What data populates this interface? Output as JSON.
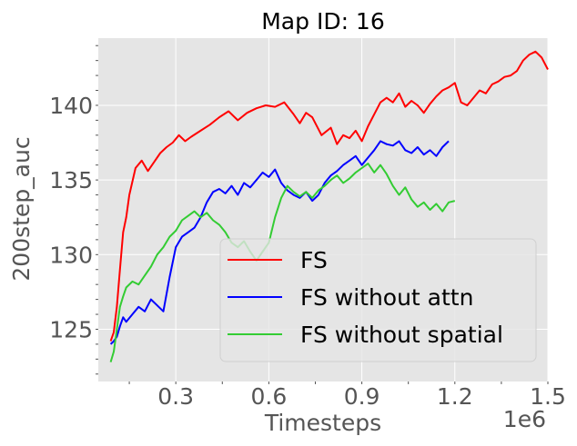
{
  "chart_data": {
    "type": "line",
    "title": "Map ID: 16",
    "xlabel": "Timesteps",
    "ylabel": "200step_auc",
    "x_offset_label": "1e6",
    "xlim": [
      0.05,
      1.5
    ],
    "ylim": [
      121.5,
      144.5
    ],
    "x_ticks": [
      0.3,
      0.6,
      0.9,
      1.2,
      1.5
    ],
    "x_tick_labels": [
      "0.3",
      "0.6",
      "0.9",
      "1.2",
      "1.5"
    ],
    "y_ticks": [
      125,
      130,
      135,
      140
    ],
    "y_tick_labels": [
      "125",
      "130",
      "135",
      "140"
    ],
    "grid": true,
    "background": "#e5e5e5",
    "legend_position": "lower-right",
    "series": [
      {
        "name": "FS",
        "color": "#ff0000",
        "x": [
          0.09,
          0.1,
          0.11,
          0.12,
          0.13,
          0.14,
          0.15,
          0.17,
          0.19,
          0.21,
          0.23,
          0.25,
          0.27,
          0.29,
          0.31,
          0.33,
          0.35,
          0.38,
          0.41,
          0.44,
          0.47,
          0.5,
          0.53,
          0.56,
          0.59,
          0.62,
          0.65,
          0.68,
          0.7,
          0.72,
          0.74,
          0.77,
          0.8,
          0.82,
          0.84,
          0.86,
          0.88,
          0.9,
          0.92,
          0.94,
          0.96,
          0.98,
          1.0,
          1.02,
          1.04,
          1.06,
          1.08,
          1.1,
          1.12,
          1.14,
          1.16,
          1.18,
          1.2,
          1.22,
          1.24,
          1.26,
          1.28,
          1.3,
          1.32,
          1.34,
          1.36,
          1.38,
          1.4,
          1.42,
          1.44,
          1.46,
          1.48,
          1.5
        ],
        "y": [
          124.2,
          124.8,
          126.5,
          129.0,
          131.5,
          132.5,
          134.0,
          135.8,
          136.3,
          135.6,
          136.2,
          136.8,
          137.2,
          137.5,
          138.0,
          137.6,
          137.9,
          138.3,
          138.7,
          139.2,
          139.6,
          139.0,
          139.5,
          139.8,
          140.0,
          139.9,
          140.2,
          139.4,
          138.8,
          139.5,
          139.2,
          138.0,
          138.5,
          137.4,
          138.0,
          137.8,
          138.3,
          137.6,
          138.6,
          139.4,
          140.2,
          140.5,
          140.2,
          140.8,
          139.9,
          140.3,
          140.0,
          139.5,
          140.1,
          140.6,
          141.0,
          141.2,
          141.5,
          140.2,
          140.0,
          140.5,
          141.0,
          140.8,
          141.4,
          141.6,
          141.9,
          142.0,
          142.3,
          143.0,
          143.4,
          143.6,
          143.2,
          142.4
        ]
      },
      {
        "name": "FS without attn",
        "color": "#0000ff",
        "x": [
          0.09,
          0.1,
          0.11,
          0.12,
          0.13,
          0.14,
          0.16,
          0.18,
          0.2,
          0.22,
          0.24,
          0.26,
          0.28,
          0.3,
          0.32,
          0.34,
          0.36,
          0.38,
          0.4,
          0.42,
          0.44,
          0.46,
          0.48,
          0.5,
          0.52,
          0.54,
          0.56,
          0.58,
          0.6,
          0.62,
          0.64,
          0.66,
          0.68,
          0.7,
          0.72,
          0.74,
          0.76,
          0.78,
          0.8,
          0.82,
          0.84,
          0.86,
          0.88,
          0.9,
          0.92,
          0.94,
          0.96,
          0.98,
          1.0,
          1.02,
          1.04,
          1.06,
          1.08,
          1.1,
          1.12,
          1.14,
          1.16,
          1.18
        ],
        "y": [
          124.0,
          124.2,
          124.5,
          125.2,
          125.8,
          125.5,
          126.0,
          126.5,
          126.2,
          127.0,
          126.6,
          126.2,
          128.5,
          130.5,
          131.2,
          131.5,
          131.8,
          132.5,
          133.5,
          134.2,
          134.4,
          134.1,
          134.6,
          134.0,
          134.8,
          134.5,
          135.0,
          135.5,
          135.2,
          135.7,
          134.8,
          134.3,
          134.0,
          133.8,
          134.2,
          133.6,
          134.0,
          134.8,
          135.3,
          135.6,
          136.0,
          136.3,
          136.6,
          136.0,
          136.5,
          137.0,
          137.6,
          137.4,
          137.3,
          137.6,
          137.0,
          136.8,
          137.2,
          136.7,
          137.0,
          136.6,
          137.2,
          137.6
        ]
      },
      {
        "name": "FS without spatial",
        "color": "#33cc33",
        "x": [
          0.09,
          0.1,
          0.11,
          0.12,
          0.13,
          0.14,
          0.16,
          0.18,
          0.2,
          0.22,
          0.24,
          0.26,
          0.28,
          0.3,
          0.32,
          0.34,
          0.36,
          0.38,
          0.4,
          0.42,
          0.44,
          0.46,
          0.48,
          0.5,
          0.52,
          0.54,
          0.56,
          0.58,
          0.6,
          0.62,
          0.64,
          0.66,
          0.68,
          0.7,
          0.72,
          0.74,
          0.76,
          0.78,
          0.8,
          0.82,
          0.84,
          0.86,
          0.88,
          0.9,
          0.92,
          0.94,
          0.96,
          0.98,
          1.0,
          1.02,
          1.04,
          1.06,
          1.08,
          1.1,
          1.12,
          1.14,
          1.16,
          1.18,
          1.2
        ],
        "y": [
          122.8,
          123.5,
          125.0,
          126.5,
          127.2,
          127.8,
          128.2,
          128.0,
          128.6,
          129.2,
          130.0,
          130.5,
          131.2,
          131.6,
          132.3,
          132.6,
          132.9,
          132.5,
          132.8,
          132.3,
          132.0,
          131.5,
          130.8,
          130.5,
          130.9,
          130.2,
          129.6,
          130.2,
          130.8,
          132.5,
          133.8,
          134.6,
          134.2,
          133.9,
          134.2,
          133.8,
          134.3,
          134.6,
          135.0,
          135.3,
          134.8,
          135.1,
          135.5,
          135.8,
          136.1,
          135.5,
          136.0,
          135.4,
          134.6,
          134.0,
          134.5,
          133.7,
          133.2,
          133.5,
          133.0,
          133.4,
          132.9,
          133.5,
          133.6
        ]
      }
    ]
  }
}
